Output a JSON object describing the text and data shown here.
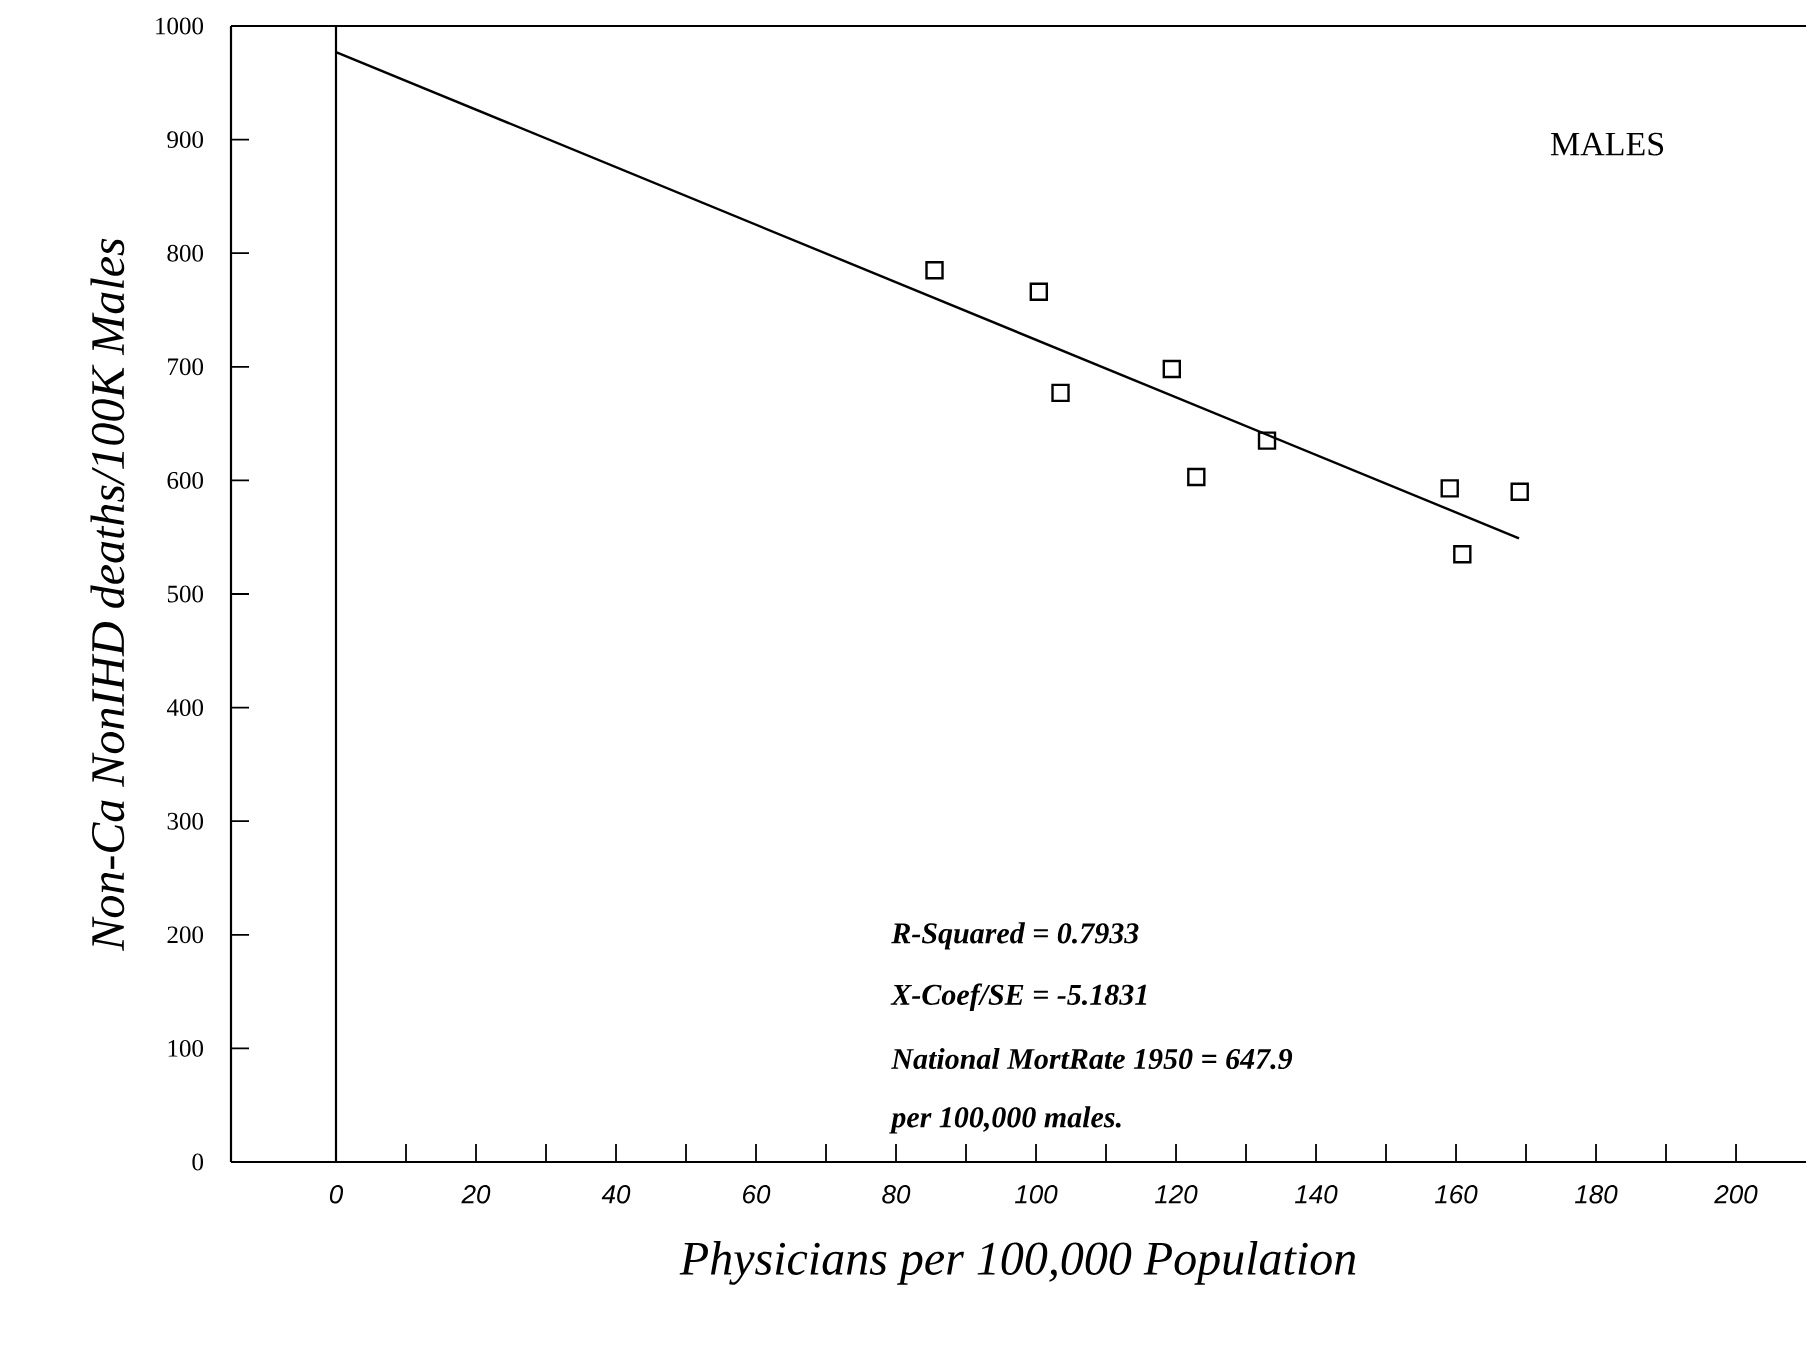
{
  "chart_data": {
    "type": "scatter",
    "xlabel": "Physicians per 100,000 Population",
    "ylabel": "Non-Ca NonIHD deaths/100K Males",
    "annotations": [
      "MALES",
      "R-Squared = 0.7933",
      "X-Coef/SE = -5.1831",
      "National MortRate 1950 = 647.9",
      "per 100,000 males."
    ],
    "series": [
      {
        "color": "#000000",
        "marker": "square",
        "x": [
          85.5,
          100.4,
          103.5,
          119.4,
          122.9,
          133,
          159.1,
          160.9,
          169.1
        ],
        "values": [
          785,
          766,
          677,
          698,
          603,
          635,
          593,
          535,
          590
        ]
      },
      {
        "type": "line",
        "color": "#000000",
        "line_style": "solid",
        "x": [
          0,
          169
        ],
        "values": [
          977,
          549
        ]
      }
    ],
    "ref_lines": [
      {
        "axis": "x",
        "value": 0,
        "color": "#000000"
      }
    ],
    "xlim": [
      -15,
      210
    ],
    "ylim": [
      0,
      1000
    ],
    "xticks": [
      0,
      {
        "value": 10,
        "label": null
      },
      20,
      {
        "value": 30,
        "label": null
      },
      40,
      {
        "value": 50,
        "label": null
      },
      60,
      {
        "value": 70,
        "label": null
      },
      80,
      {
        "value": 90,
        "label": null
      },
      100,
      {
        "value": 110,
        "label": null
      },
      120,
      {
        "value": 130,
        "label": null
      },
      140,
      {
        "value": 150,
        "label": null
      },
      160,
      {
        "value": 170,
        "label": null
      },
      180,
      {
        "value": 190,
        "label": null
      },
      200
    ],
    "yticks": [
      0,
      100,
      200,
      300,
      400,
      500,
      600,
      700,
      800,
      900,
      1000
    ]
  }
}
